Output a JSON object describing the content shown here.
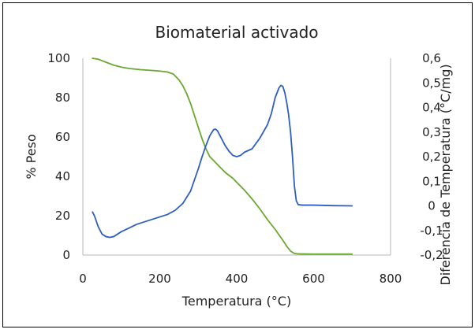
{
  "chart_data": {
    "type": "line",
    "title": "Biomaterial activado",
    "xlabel": "Temperatura (°C)",
    "ylabel": "% Peso",
    "y2label": "Diferencia de Temperatura (°C/mg)",
    "xlim": [
      0,
      800
    ],
    "ylim": [
      0,
      100
    ],
    "y2lim": [
      -0.2,
      0.6
    ],
    "xticks": [
      "0",
      "200",
      "400",
      "600",
      "800"
    ],
    "yticks": [
      "0",
      "20",
      "40",
      "60",
      "80",
      "100"
    ],
    "y2ticks": [
      "-0,2",
      "-0,1",
      "0",
      "0,1",
      "0,2",
      "0,3",
      "0,4",
      "0,5",
      "0,6"
    ],
    "grid": false,
    "border_color": "#000000",
    "series": [
      {
        "axis": "left",
        "color": "#6aa832",
        "x": [
          25,
          40,
          60,
          80,
          100,
          120,
          150,
          180,
          200,
          220,
          235,
          250,
          260,
          270,
          280,
          290,
          300,
          310,
          320,
          330,
          340,
          350,
          360,
          370,
          380,
          390,
          400,
          420,
          440,
          460,
          480,
          500,
          520,
          530,
          540,
          550,
          560,
          600,
          650,
          700
        ],
        "values": [
          100,
          99.5,
          98,
          96.5,
          95.5,
          94.8,
          94.2,
          93.8,
          93.5,
          93,
          92,
          89,
          86,
          82,
          77,
          71,
          65,
          59,
          54,
          50,
          48,
          46,
          44,
          42,
          40.5,
          39,
          37,
          33,
          28.5,
          23.5,
          18,
          13,
          7.5,
          4.5,
          2,
          0.8,
          0.6,
          0.5,
          0.5,
          0.5
        ]
      },
      {
        "axis": "right",
        "color": "#2e5fc0",
        "x": [
          25,
          30,
          40,
          50,
          60,
          70,
          80,
          90,
          100,
          120,
          140,
          160,
          180,
          200,
          220,
          240,
          260,
          280,
          300,
          310,
          320,
          330,
          340,
          345,
          350,
          360,
          370,
          380,
          390,
          400,
          410,
          420,
          440,
          460,
          480,
          490,
          500,
          510,
          515,
          520,
          525,
          530,
          535,
          540,
          545,
          550,
          555,
          560,
          570,
          600,
          650,
          700
        ],
        "values": [
          -0.025,
          -0.04,
          -0.085,
          -0.115,
          -0.125,
          -0.128,
          -0.125,
          -0.115,
          -0.105,
          -0.09,
          -0.075,
          -0.065,
          -0.055,
          -0.045,
          -0.035,
          -0.018,
          0.01,
          0.06,
          0.15,
          0.2,
          0.245,
          0.285,
          0.31,
          0.312,
          0.305,
          0.275,
          0.245,
          0.222,
          0.205,
          0.2,
          0.205,
          0.218,
          0.232,
          0.275,
          0.33,
          0.375,
          0.44,
          0.48,
          0.49,
          0.485,
          0.46,
          0.42,
          0.37,
          0.3,
          0.2,
          0.08,
          0.02,
          0.005,
          0.003,
          0.003,
          0.001,
          0.0
        ]
      }
    ]
  }
}
